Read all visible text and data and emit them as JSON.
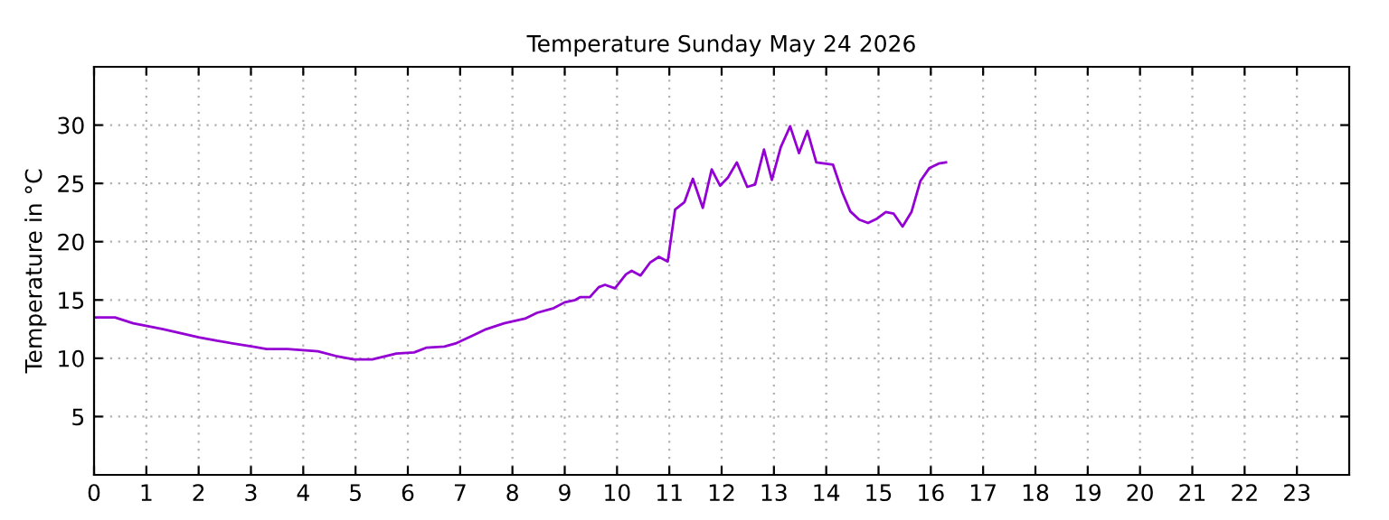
{
  "chart_data": {
    "type": "line",
    "title": "Temperature Sunday May 24 2026",
    "ylabel": "Temperature in °C",
    "xlim": [
      0,
      24
    ],
    "xticks": [
      0,
      1,
      2,
      3,
      4,
      5,
      6,
      7,
      8,
      9,
      10,
      11,
      12,
      13,
      14,
      15,
      16,
      17,
      18,
      19,
      20,
      21,
      22,
      23
    ],
    "ylim": [
      0,
      35
    ],
    "yticks": [
      5,
      10,
      15,
      20,
      25,
      30
    ],
    "grid": true,
    "legend": false,
    "marker": "none",
    "line_style": "solid",
    "series": [
      {
        "color": "#9400d3",
        "x": [
          0,
          0.4,
          0.75,
          1.32,
          2.0,
          2.35,
          3.03,
          3.3,
          3.7,
          4.28,
          4.62,
          4.97,
          5.32,
          5.78,
          6.12,
          6.35,
          6.7,
          6.93,
          7.22,
          7.5,
          7.84,
          8.24,
          8.47,
          8.79,
          9.0,
          9.2,
          9.3,
          9.48,
          9.65,
          9.77,
          9.96,
          10.17,
          10.28,
          10.45,
          10.63,
          10.8,
          10.97,
          11.11,
          11.29,
          11.45,
          11.64,
          11.81,
          11.97,
          12.12,
          12.29,
          12.49,
          12.64,
          12.81,
          12.96,
          13.13,
          13.31,
          13.48,
          13.64,
          13.81,
          14.13,
          14.31,
          14.46,
          14.63,
          14.8,
          14.96,
          15.14,
          15.29,
          15.46,
          15.63,
          15.8,
          15.97,
          16.15,
          16.29
        ],
        "values": [
          13.5,
          13.5,
          13.0,
          12.5,
          11.8,
          11.5,
          11.0,
          10.8,
          10.8,
          10.6,
          10.2,
          9.9,
          9.9,
          10.4,
          10.5,
          10.9,
          11.0,
          11.3,
          11.9,
          12.5,
          13.0,
          13.4,
          13.9,
          14.3,
          14.8,
          15.0,
          15.25,
          15.25,
          16.1,
          16.3,
          16.0,
          17.2,
          17.5,
          17.1,
          18.2,
          18.7,
          18.3,
          22.75,
          23.4,
          25.4,
          22.9,
          26.2,
          24.8,
          25.5,
          26.8,
          24.7,
          24.9,
          27.9,
          25.3,
          28.1,
          29.9,
          27.6,
          29.5,
          26.8,
          26.6,
          24.2,
          22.6,
          21.9,
          21.6,
          21.95,
          22.55,
          22.4,
          21.3,
          22.55,
          25.2,
          26.3,
          26.7,
          26.8
        ]
      }
    ]
  }
}
